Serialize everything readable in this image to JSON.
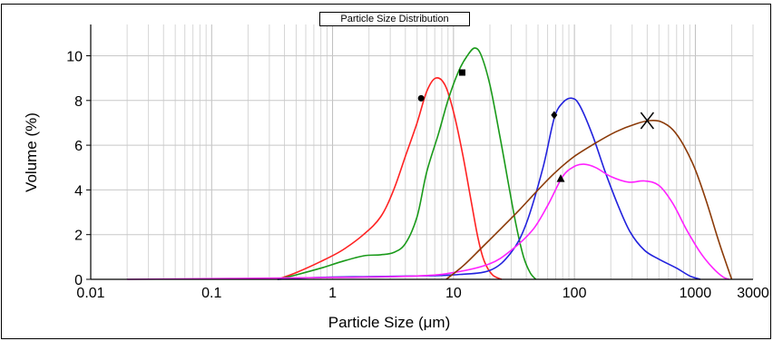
{
  "chart_data": {
    "type": "line",
    "title": "Particle Size Distribution",
    "xlabel": "Particle Size (μm)",
    "ylabel": "Volume (%)",
    "xscale": "log",
    "xlim": [
      0.01,
      3000
    ],
    "ylim": [
      0,
      11.4
    ],
    "grid": true,
    "x_ticks": [
      {
        "v": 0.01,
        "label": "0.01"
      },
      {
        "v": 0.1,
        "label": "0.1"
      },
      {
        "v": 1,
        "label": "1"
      },
      {
        "v": 10,
        "label": "10"
      },
      {
        "v": 100,
        "label": "100"
      },
      {
        "v": 1000,
        "label": "1000"
      },
      {
        "v": 3000,
        "label": "3000"
      }
    ],
    "y_ticks": [
      {
        "v": 0,
        "label": "0"
      },
      {
        "v": 2,
        "label": "2"
      },
      {
        "v": 4,
        "label": "4"
      },
      {
        "v": 6,
        "label": "6"
      },
      {
        "v": 8,
        "label": "8"
      },
      {
        "v": 10,
        "label": "10"
      }
    ],
    "series": [
      {
        "color": "#ff2222",
        "marker": "circle",
        "marker_at": [
          5.4,
          8.1
        ],
        "points": [
          [
            0.35,
            0
          ],
          [
            0.5,
            0.3
          ],
          [
            0.8,
            0.8
          ],
          [
            1.2,
            1.3
          ],
          [
            1.8,
            2.0
          ],
          [
            2.5,
            2.8
          ],
          [
            3.2,
            4.0
          ],
          [
            4.0,
            5.5
          ],
          [
            5.0,
            7.0
          ],
          [
            6.0,
            8.4
          ],
          [
            7.1,
            9.0
          ],
          [
            8.5,
            8.7
          ],
          [
            10.0,
            7.5
          ],
          [
            12.0,
            5.5
          ],
          [
            14.0,
            3.5
          ],
          [
            16.0,
            1.8
          ],
          [
            18.0,
            0.8
          ],
          [
            21.0,
            0.2
          ],
          [
            25.0,
            0
          ]
        ]
      },
      {
        "color": "#1a9a1a",
        "marker": "square",
        "marker_at": [
          11.8,
          9.25
        ],
        "points": [
          [
            0.35,
            0
          ],
          [
            0.5,
            0.2
          ],
          [
            0.8,
            0.5
          ],
          [
            1.2,
            0.8
          ],
          [
            1.8,
            1.05
          ],
          [
            2.5,
            1.1
          ],
          [
            3.2,
            1.2
          ],
          [
            4.0,
            1.6
          ],
          [
            5.0,
            2.8
          ],
          [
            6.0,
            4.8
          ],
          [
            7.5,
            6.5
          ],
          [
            9.0,
            8.0
          ],
          [
            11.0,
            9.3
          ],
          [
            13.0,
            10.0
          ],
          [
            15.0,
            10.35
          ],
          [
            17.0,
            10.0
          ],
          [
            20.0,
            8.7
          ],
          [
            24.0,
            6.5
          ],
          [
            28.0,
            4.5
          ],
          [
            33.0,
            2.4
          ],
          [
            38.0,
            1.0
          ],
          [
            43.0,
            0.3
          ],
          [
            48.0,
            0
          ]
        ]
      },
      {
        "color": "#2222dd",
        "marker": "diamond",
        "marker_at": [
          68,
          7.35
        ],
        "points": [
          [
            0.35,
            0
          ],
          [
            0.5,
            0.05
          ],
          [
            1.0,
            0.1
          ],
          [
            2.0,
            0.12
          ],
          [
            5.0,
            0.15
          ],
          [
            10.0,
            0.2
          ],
          [
            20.0,
            0.4
          ],
          [
            30.0,
            1.2
          ],
          [
            40.0,
            2.5
          ],
          [
            55.0,
            5.0
          ],
          [
            68.0,
            7.2
          ],
          [
            80.0,
            7.9
          ],
          [
            95.0,
            8.1
          ],
          [
            110.0,
            7.8
          ],
          [
            140.0,
            6.5
          ],
          [
            180.0,
            4.8
          ],
          [
            230.0,
            3.3
          ],
          [
            290.0,
            2.1
          ],
          [
            380.0,
            1.3
          ],
          [
            500.0,
            0.9
          ],
          [
            700.0,
            0.5
          ],
          [
            900.0,
            0.15
          ],
          [
            1100.0,
            0
          ]
        ]
      },
      {
        "color": "#ff22ff",
        "marker": "triangle",
        "marker_at": [
          77,
          4.5
        ],
        "points": [
          [
            0.02,
            0
          ],
          [
            1.0,
            0.08
          ],
          [
            5.0,
            0.15
          ],
          [
            10.0,
            0.3
          ],
          [
            20.0,
            0.7
          ],
          [
            30.0,
            1.3
          ],
          [
            45.0,
            2.2
          ],
          [
            60.0,
            3.3
          ],
          [
            80.0,
            4.6
          ],
          [
            100.0,
            5.05
          ],
          [
            120.0,
            5.15
          ],
          [
            150.0,
            5.0
          ],
          [
            200.0,
            4.6
          ],
          [
            280.0,
            4.35
          ],
          [
            380.0,
            4.4
          ],
          [
            500.0,
            4.2
          ],
          [
            650.0,
            3.4
          ],
          [
            850.0,
            2.2
          ],
          [
            1100.0,
            1.2
          ],
          [
            1400.0,
            0.5
          ],
          [
            1700.0,
            0.1
          ],
          [
            1900.0,
            0
          ]
        ]
      },
      {
        "color": "#8b3a08",
        "marker": "x",
        "marker_at": [
          400,
          7.1
        ],
        "points": [
          [
            8.7,
            0
          ],
          [
            12.0,
            0.6
          ],
          [
            17.0,
            1.4
          ],
          [
            25.0,
            2.3
          ],
          [
            35.0,
            3.1
          ],
          [
            50.0,
            4.0
          ],
          [
            70.0,
            4.8
          ],
          [
            100.0,
            5.5
          ],
          [
            150.0,
            6.1
          ],
          [
            220.0,
            6.6
          ],
          [
            320.0,
            6.95
          ],
          [
            420.0,
            7.1
          ],
          [
            520.0,
            7.05
          ],
          [
            650.0,
            6.7
          ],
          [
            800.0,
            6.0
          ],
          [
            1000.0,
            4.9
          ],
          [
            1250.0,
            3.4
          ],
          [
            1500.0,
            2.0
          ],
          [
            1750.0,
            0.9
          ],
          [
            2000.0,
            0
          ]
        ]
      }
    ]
  }
}
